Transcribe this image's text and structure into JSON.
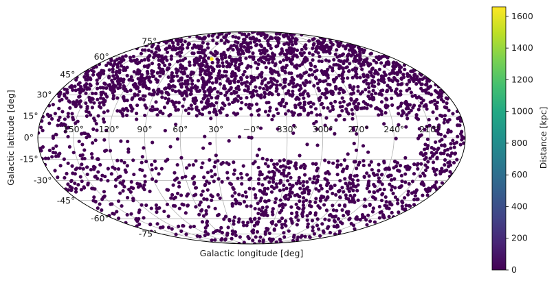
{
  "chart_data": {
    "type": "scatter",
    "projection": "mollweide",
    "xlabel": "Galactic longitude [deg]",
    "ylabel": "Galactic latitude [deg]",
    "x_range_deg": [
      -180,
      180
    ],
    "y_range_deg": [
      -90,
      90
    ],
    "grid": true,
    "longitude_tick_labels": [
      "150°",
      "120°",
      "90°",
      "60°",
      "30°",
      "−0°",
      "330°",
      "300°",
      "270°",
      "240°",
      "210°"
    ],
    "latitude_tick_labels": [
      "75°",
      "60°",
      "45°",
      "30°",
      "15°",
      "0°",
      "-15°",
      "-30°",
      "-45°",
      "-60°",
      "-75°"
    ],
    "colorbar": {
      "label": "Distance [kpc]",
      "colormap": "viridis",
      "range": [
        0,
        1660
      ],
      "tick_labels": [
        "0",
        "200",
        "400",
        "600",
        "800",
        "1000",
        "1200",
        "1400",
        "1600"
      ]
    },
    "point_color": "#440154",
    "point_count_estimate": 3000,
    "density_regions": [
      {
        "l_range": [
          -180,
          180
        ],
        "b_range": [
          30,
          90
        ],
        "density": "very high"
      },
      {
        "l_range": [
          -140,
          180
        ],
        "b_range": [
          15,
          30
        ],
        "density": "high"
      },
      {
        "l_range": [
          -180,
          -140
        ],
        "b_range": [
          -20,
          30
        ],
        "density": "high"
      },
      {
        "l_range": [
          120,
          180
        ],
        "b_range": [
          -90,
          90
        ],
        "density": "medium"
      },
      {
        "l_range": [
          -180,
          0
        ],
        "b_range": [
          -90,
          -15
        ],
        "density": "high"
      },
      {
        "l_range": [
          0,
          180
        ],
        "b_range": [
          -90,
          -15
        ],
        "density": "medium"
      },
      {
        "l_range": [
          -180,
          180
        ],
        "b_range": [
          -15,
          15
        ],
        "density": "low"
      }
    ],
    "highlighted_points": [
      {
        "l_deg": 0,
        "b_deg": 0,
        "distance_kpc": 8
      },
      {
        "l_deg": 50,
        "b_deg": 58,
        "distance_kpc": 1600
      }
    ]
  }
}
